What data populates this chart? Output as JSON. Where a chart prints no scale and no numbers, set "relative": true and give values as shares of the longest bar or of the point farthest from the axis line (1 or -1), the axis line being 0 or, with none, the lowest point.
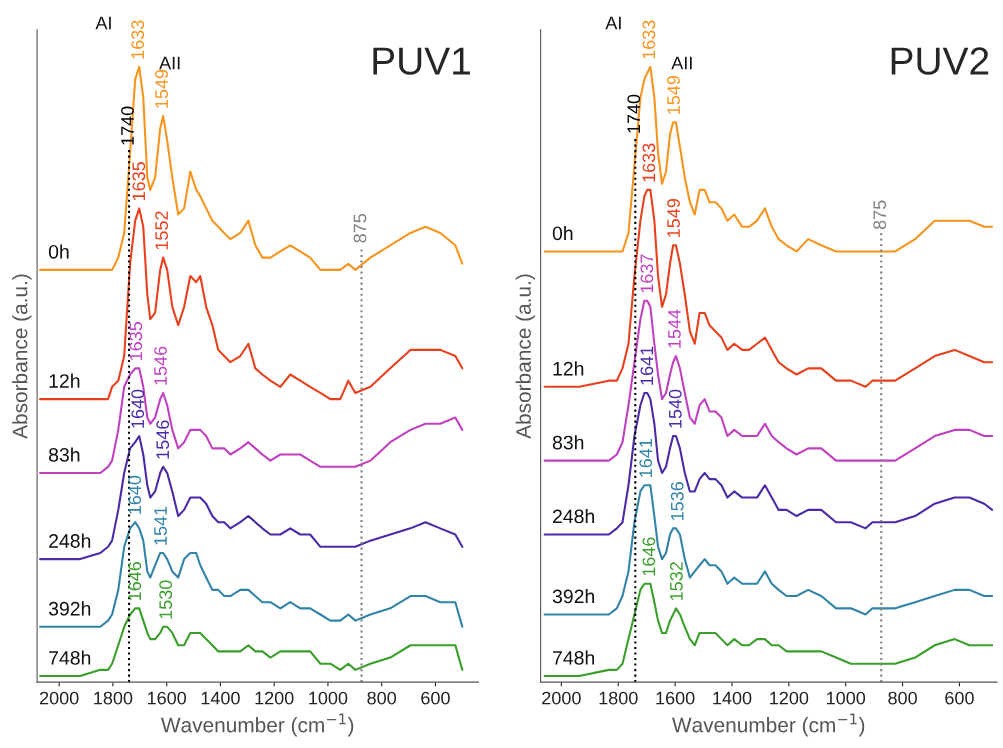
{
  "chart_data": [
    {
      "type": "line",
      "title": "PUV1",
      "xlabel": "Wavenumber (cm$^{−1}$)",
      "ylabel": "Absorbance (a.u.)",
      "relative": true,
      "legend": false,
      "grid": false,
      "line_style": "solid",
      "xlim": [
        2082,
        440
      ],
      "xticks": [
        2000,
        1800,
        1600,
        1400,
        1200,
        1000,
        800,
        600
      ],
      "x": [
        2071,
        1922,
        1847,
        1818,
        1803,
        1780,
        1758,
        1736,
        1717,
        1702,
        1687,
        1672,
        1661,
        1643,
        1624,
        1613,
        1598,
        1579,
        1557,
        1535,
        1512,
        1490,
        1475,
        1453,
        1430,
        1408,
        1386,
        1363,
        1326,
        1296,
        1270,
        1244,
        1214,
        1177,
        1140,
        1103,
        1066,
        1028,
        991,
        954,
        924,
        898,
        842,
        768,
        693,
        637,
        582,
        526,
        500
      ],
      "series": [
        {
          "name": "0h",
          "color": "#f7941d",
          "values": [
            0.67,
            0.67,
            0.67,
            0.67,
            0.67,
            0.69,
            0.73,
            0.86,
            0.98,
            1.0,
            0.95,
            0.82,
            0.8,
            0.82,
            0.9,
            0.92,
            0.88,
            0.82,
            0.76,
            0.77,
            0.83,
            0.8,
            0.79,
            0.77,
            0.75,
            0.74,
            0.73,
            0.72,
            0.73,
            0.75,
            0.71,
            0.69,
            0.69,
            0.7,
            0.71,
            0.7,
            0.69,
            0.67,
            0.67,
            0.67,
            0.68,
            0.67,
            0.69,
            0.71,
            0.73,
            0.74,
            0.73,
            0.71,
            0.68
          ]
        },
        {
          "name": "12h",
          "color": "#e8401c",
          "values": [
            0.46,
            0.46,
            0.46,
            0.46,
            0.48,
            0.49,
            0.53,
            0.68,
            0.75,
            0.77,
            0.74,
            0.63,
            0.59,
            0.6,
            0.67,
            0.69,
            0.67,
            0.61,
            0.58,
            0.61,
            0.66,
            0.65,
            0.66,
            0.61,
            0.58,
            0.54,
            0.53,
            0.52,
            0.53,
            0.55,
            0.51,
            0.5,
            0.49,
            0.48,
            0.5,
            0.49,
            0.48,
            0.47,
            0.46,
            0.46,
            0.49,
            0.47,
            0.48,
            0.51,
            0.54,
            0.54,
            0.54,
            0.53,
            0.51
          ]
        },
        {
          "name": "83h",
          "color": "#c040c0",
          "values": [
            0.34,
            0.34,
            0.34,
            0.35,
            0.36,
            0.41,
            0.48,
            0.5,
            0.51,
            0.51,
            0.48,
            0.43,
            0.42,
            0.43,
            0.46,
            0.47,
            0.45,
            0.41,
            0.38,
            0.39,
            0.41,
            0.41,
            0.41,
            0.4,
            0.38,
            0.38,
            0.38,
            0.37,
            0.38,
            0.39,
            0.38,
            0.37,
            0.36,
            0.37,
            0.37,
            0.37,
            0.36,
            0.35,
            0.35,
            0.35,
            0.35,
            0.35,
            0.36,
            0.39,
            0.41,
            0.42,
            0.42,
            0.43,
            0.41
          ]
        },
        {
          "name": "248h",
          "color": "#4b2aa8",
          "values": [
            0.2,
            0.2,
            0.21,
            0.22,
            0.23,
            0.28,
            0.34,
            0.38,
            0.39,
            0.4,
            0.37,
            0.32,
            0.3,
            0.31,
            0.34,
            0.35,
            0.34,
            0.31,
            0.27,
            0.28,
            0.3,
            0.3,
            0.3,
            0.29,
            0.27,
            0.26,
            0.26,
            0.25,
            0.26,
            0.27,
            0.26,
            0.25,
            0.24,
            0.24,
            0.25,
            0.24,
            0.24,
            0.22,
            0.22,
            0.22,
            0.22,
            0.22,
            0.23,
            0.24,
            0.25,
            0.26,
            0.25,
            0.24,
            0.22
          ]
        },
        {
          "name": "392h",
          "color": "#3283a8",
          "values": [
            0.09,
            0.09,
            0.09,
            0.1,
            0.11,
            0.15,
            0.22,
            0.25,
            0.26,
            0.25,
            0.23,
            0.18,
            0.17,
            0.19,
            0.21,
            0.21,
            0.2,
            0.18,
            0.17,
            0.2,
            0.21,
            0.21,
            0.19,
            0.17,
            0.15,
            0.15,
            0.14,
            0.14,
            0.15,
            0.15,
            0.14,
            0.13,
            0.13,
            0.12,
            0.13,
            0.12,
            0.12,
            0.11,
            0.1,
            0.1,
            0.11,
            0.1,
            0.11,
            0.12,
            0.14,
            0.14,
            0.13,
            0.13,
            0.09
          ]
        },
        {
          "name": "748h",
          "color": "#3a9e2a",
          "values": [
            0.01,
            0.01,
            0.02,
            0.02,
            0.03,
            0.06,
            0.09,
            0.11,
            0.12,
            0.12,
            0.1,
            0.08,
            0.07,
            0.07,
            0.08,
            0.09,
            0.09,
            0.08,
            0.06,
            0.06,
            0.08,
            0.08,
            0.08,
            0.07,
            0.06,
            0.05,
            0.05,
            0.05,
            0.05,
            0.06,
            0.05,
            0.05,
            0.04,
            0.05,
            0.05,
            0.05,
            0.05,
            0.03,
            0.03,
            0.02,
            0.03,
            0.02,
            0.03,
            0.04,
            0.06,
            0.06,
            0.06,
            0.06,
            0.02
          ]
        }
      ],
      "ref_lines": [
        {
          "axis": "x",
          "value": 1740,
          "label": "1740",
          "color": "#000000",
          "line_style": "dotted"
        },
        {
          "axis": "x",
          "value": 875,
          "label": "875",
          "color": "#808080",
          "line_style": "dotted"
        }
      ],
      "annotations": [
        "AI",
        "AII",
        {
          "text": "1633",
          "x": 1702,
          "y": 1.0
        },
        {
          "text": "1549",
          "x": 1613,
          "y": 0.92
        },
        {
          "text": "1635",
          "x": 1698,
          "y": 0.77
        },
        {
          "text": "1552",
          "x": 1613,
          "y": 0.69
        },
        {
          "text": "1635",
          "x": 1709,
          "y": 0.51
        },
        {
          "text": "1546",
          "x": 1617,
          "y": 0.47
        },
        {
          "text": "1640",
          "x": 1702,
          "y": 0.4
        },
        {
          "text": "1546",
          "x": 1609,
          "y": 0.35
        },
        {
          "text": "1640",
          "x": 1713,
          "y": 0.26
        },
        {
          "text": "1541",
          "x": 1617,
          "y": 0.21
        },
        {
          "text": "1646",
          "x": 1713,
          "y": 0.12
        },
        {
          "text": "1530",
          "x": 1598,
          "y": 0.09
        }
      ]
    },
    {
      "type": "line",
      "title": "PUV2",
      "xlabel": "Wavenumber (cm$^{−1}$)",
      "ylabel": "Absorbance (a.u.)",
      "relative": true,
      "legend": false,
      "grid": false,
      "line_style": "solid",
      "xlim": [
        2073,
        468
      ],
      "xticks": [
        2000,
        1800,
        1600,
        1400,
        1200,
        1000,
        800,
        600
      ],
      "x": [
        2059,
        1937,
        1833,
        1805,
        1785,
        1764,
        1743,
        1722,
        1708,
        1698,
        1687,
        1673,
        1660,
        1646,
        1632,
        1618,
        1607,
        1597,
        1583,
        1566,
        1548,
        1531,
        1514,
        1496,
        1479,
        1458,
        1437,
        1416,
        1392,
        1364,
        1340,
        1312,
        1284,
        1260,
        1236,
        1208,
        1173,
        1132,
        1086,
        1034,
        982,
        930,
        906,
        878,
        826,
        756,
        687,
        617,
        565,
        513,
        485
      ],
      "series": [
        {
          "name": "0h",
          "color": "#f7941d",
          "values": [
            0.7,
            0.7,
            0.7,
            0.7,
            0.7,
            0.73,
            0.84,
            0.95,
            0.98,
            0.99,
            1.0,
            0.95,
            0.86,
            0.81,
            0.83,
            0.89,
            0.91,
            0.91,
            0.87,
            0.82,
            0.78,
            0.76,
            0.8,
            0.8,
            0.78,
            0.78,
            0.77,
            0.75,
            0.76,
            0.74,
            0.74,
            0.75,
            0.77,
            0.74,
            0.72,
            0.71,
            0.7,
            0.72,
            0.71,
            0.7,
            0.7,
            0.7,
            0.7,
            0.7,
            0.7,
            0.72,
            0.75,
            0.75,
            0.75,
            0.74,
            0.74
          ]
        },
        {
          "name": "12h",
          "color": "#e8401c",
          "values": [
            0.48,
            0.48,
            0.49,
            0.49,
            0.51,
            0.55,
            0.66,
            0.75,
            0.79,
            0.8,
            0.8,
            0.75,
            0.66,
            0.61,
            0.63,
            0.68,
            0.71,
            0.71,
            0.68,
            0.63,
            0.57,
            0.55,
            0.6,
            0.6,
            0.58,
            0.57,
            0.56,
            0.54,
            0.55,
            0.54,
            0.54,
            0.55,
            0.56,
            0.54,
            0.52,
            0.51,
            0.5,
            0.51,
            0.51,
            0.49,
            0.49,
            0.48,
            0.49,
            0.49,
            0.49,
            0.51,
            0.53,
            0.54,
            0.53,
            0.52,
            0.52
          ]
        },
        {
          "name": "83h",
          "color": "#c040c0",
          "values": [
            0.36,
            0.36,
            0.36,
            0.37,
            0.39,
            0.45,
            0.52,
            0.59,
            0.62,
            0.62,
            0.61,
            0.55,
            0.5,
            0.46,
            0.47,
            0.5,
            0.52,
            0.53,
            0.51,
            0.47,
            0.43,
            0.42,
            0.45,
            0.46,
            0.44,
            0.44,
            0.43,
            0.4,
            0.41,
            0.4,
            0.4,
            0.4,
            0.42,
            0.4,
            0.39,
            0.38,
            0.37,
            0.38,
            0.38,
            0.36,
            0.36,
            0.36,
            0.36,
            0.36,
            0.36,
            0.38,
            0.4,
            0.41,
            0.41,
            0.4,
            0.4
          ]
        },
        {
          "name": "248h",
          "color": "#4b2aa8",
          "values": [
            0.24,
            0.24,
            0.24,
            0.25,
            0.26,
            0.32,
            0.4,
            0.45,
            0.47,
            0.47,
            0.46,
            0.42,
            0.36,
            0.34,
            0.35,
            0.38,
            0.4,
            0.4,
            0.38,
            0.34,
            0.31,
            0.31,
            0.33,
            0.34,
            0.33,
            0.33,
            0.32,
            0.3,
            0.31,
            0.3,
            0.3,
            0.3,
            0.32,
            0.3,
            0.28,
            0.28,
            0.27,
            0.28,
            0.28,
            0.26,
            0.26,
            0.25,
            0.26,
            0.26,
            0.26,
            0.27,
            0.29,
            0.3,
            0.3,
            0.29,
            0.28
          ]
        },
        {
          "name": "392h",
          "color": "#3283a8",
          "values": [
            0.11,
            0.11,
            0.11,
            0.12,
            0.14,
            0.18,
            0.26,
            0.31,
            0.32,
            0.32,
            0.32,
            0.27,
            0.22,
            0.2,
            0.21,
            0.24,
            0.25,
            0.25,
            0.24,
            0.2,
            0.17,
            0.18,
            0.19,
            0.2,
            0.19,
            0.19,
            0.18,
            0.16,
            0.17,
            0.16,
            0.16,
            0.16,
            0.18,
            0.16,
            0.15,
            0.14,
            0.14,
            0.15,
            0.14,
            0.12,
            0.12,
            0.11,
            0.12,
            0.12,
            0.12,
            0.13,
            0.14,
            0.15,
            0.15,
            0.14,
            0.14
          ]
        },
        {
          "name": "748h",
          "color": "#3a9e2a",
          "values": [
            0.01,
            0.01,
            0.02,
            0.02,
            0.03,
            0.07,
            0.11,
            0.15,
            0.16,
            0.16,
            0.16,
            0.13,
            0.1,
            0.08,
            0.08,
            0.1,
            0.11,
            0.12,
            0.11,
            0.09,
            0.07,
            0.06,
            0.08,
            0.08,
            0.08,
            0.08,
            0.07,
            0.06,
            0.07,
            0.06,
            0.06,
            0.07,
            0.07,
            0.06,
            0.06,
            0.05,
            0.05,
            0.05,
            0.05,
            0.04,
            0.03,
            0.03,
            0.03,
            0.03,
            0.03,
            0.04,
            0.06,
            0.07,
            0.06,
            0.06,
            0.06
          ]
        }
      ],
      "ref_lines": [
        {
          "axis": "x",
          "value": 1740,
          "label": "1740",
          "color": "#000000",
          "line_style": "dotted"
        },
        {
          "axis": "x",
          "value": 875,
          "label": "875",
          "color": "#808080",
          "line_style": "dotted"
        }
      ],
      "annotations": [
        "AI",
        "AII",
        {
          "text": "1633",
          "x": 1687,
          "y": 1.0
        },
        {
          "text": "1549",
          "x": 1600,
          "y": 0.91
        },
        {
          "text": "1633",
          "x": 1687,
          "y": 0.8
        },
        {
          "text": "1549",
          "x": 1600,
          "y": 0.71
        },
        {
          "text": "1637",
          "x": 1694,
          "y": 0.62
        },
        {
          "text": "1544",
          "x": 1597,
          "y": 0.53
        },
        {
          "text": "1641",
          "x": 1694,
          "y": 0.47
        },
        {
          "text": "1540",
          "x": 1594,
          "y": 0.4
        },
        {
          "text": "1641",
          "x": 1698,
          "y": 0.32
        },
        {
          "text": "1536",
          "x": 1587,
          "y": 0.25
        },
        {
          "text": "1646",
          "x": 1687,
          "y": 0.16
        },
        {
          "text": "1532",
          "x": 1590,
          "y": 0.12
        }
      ]
    }
  ]
}
